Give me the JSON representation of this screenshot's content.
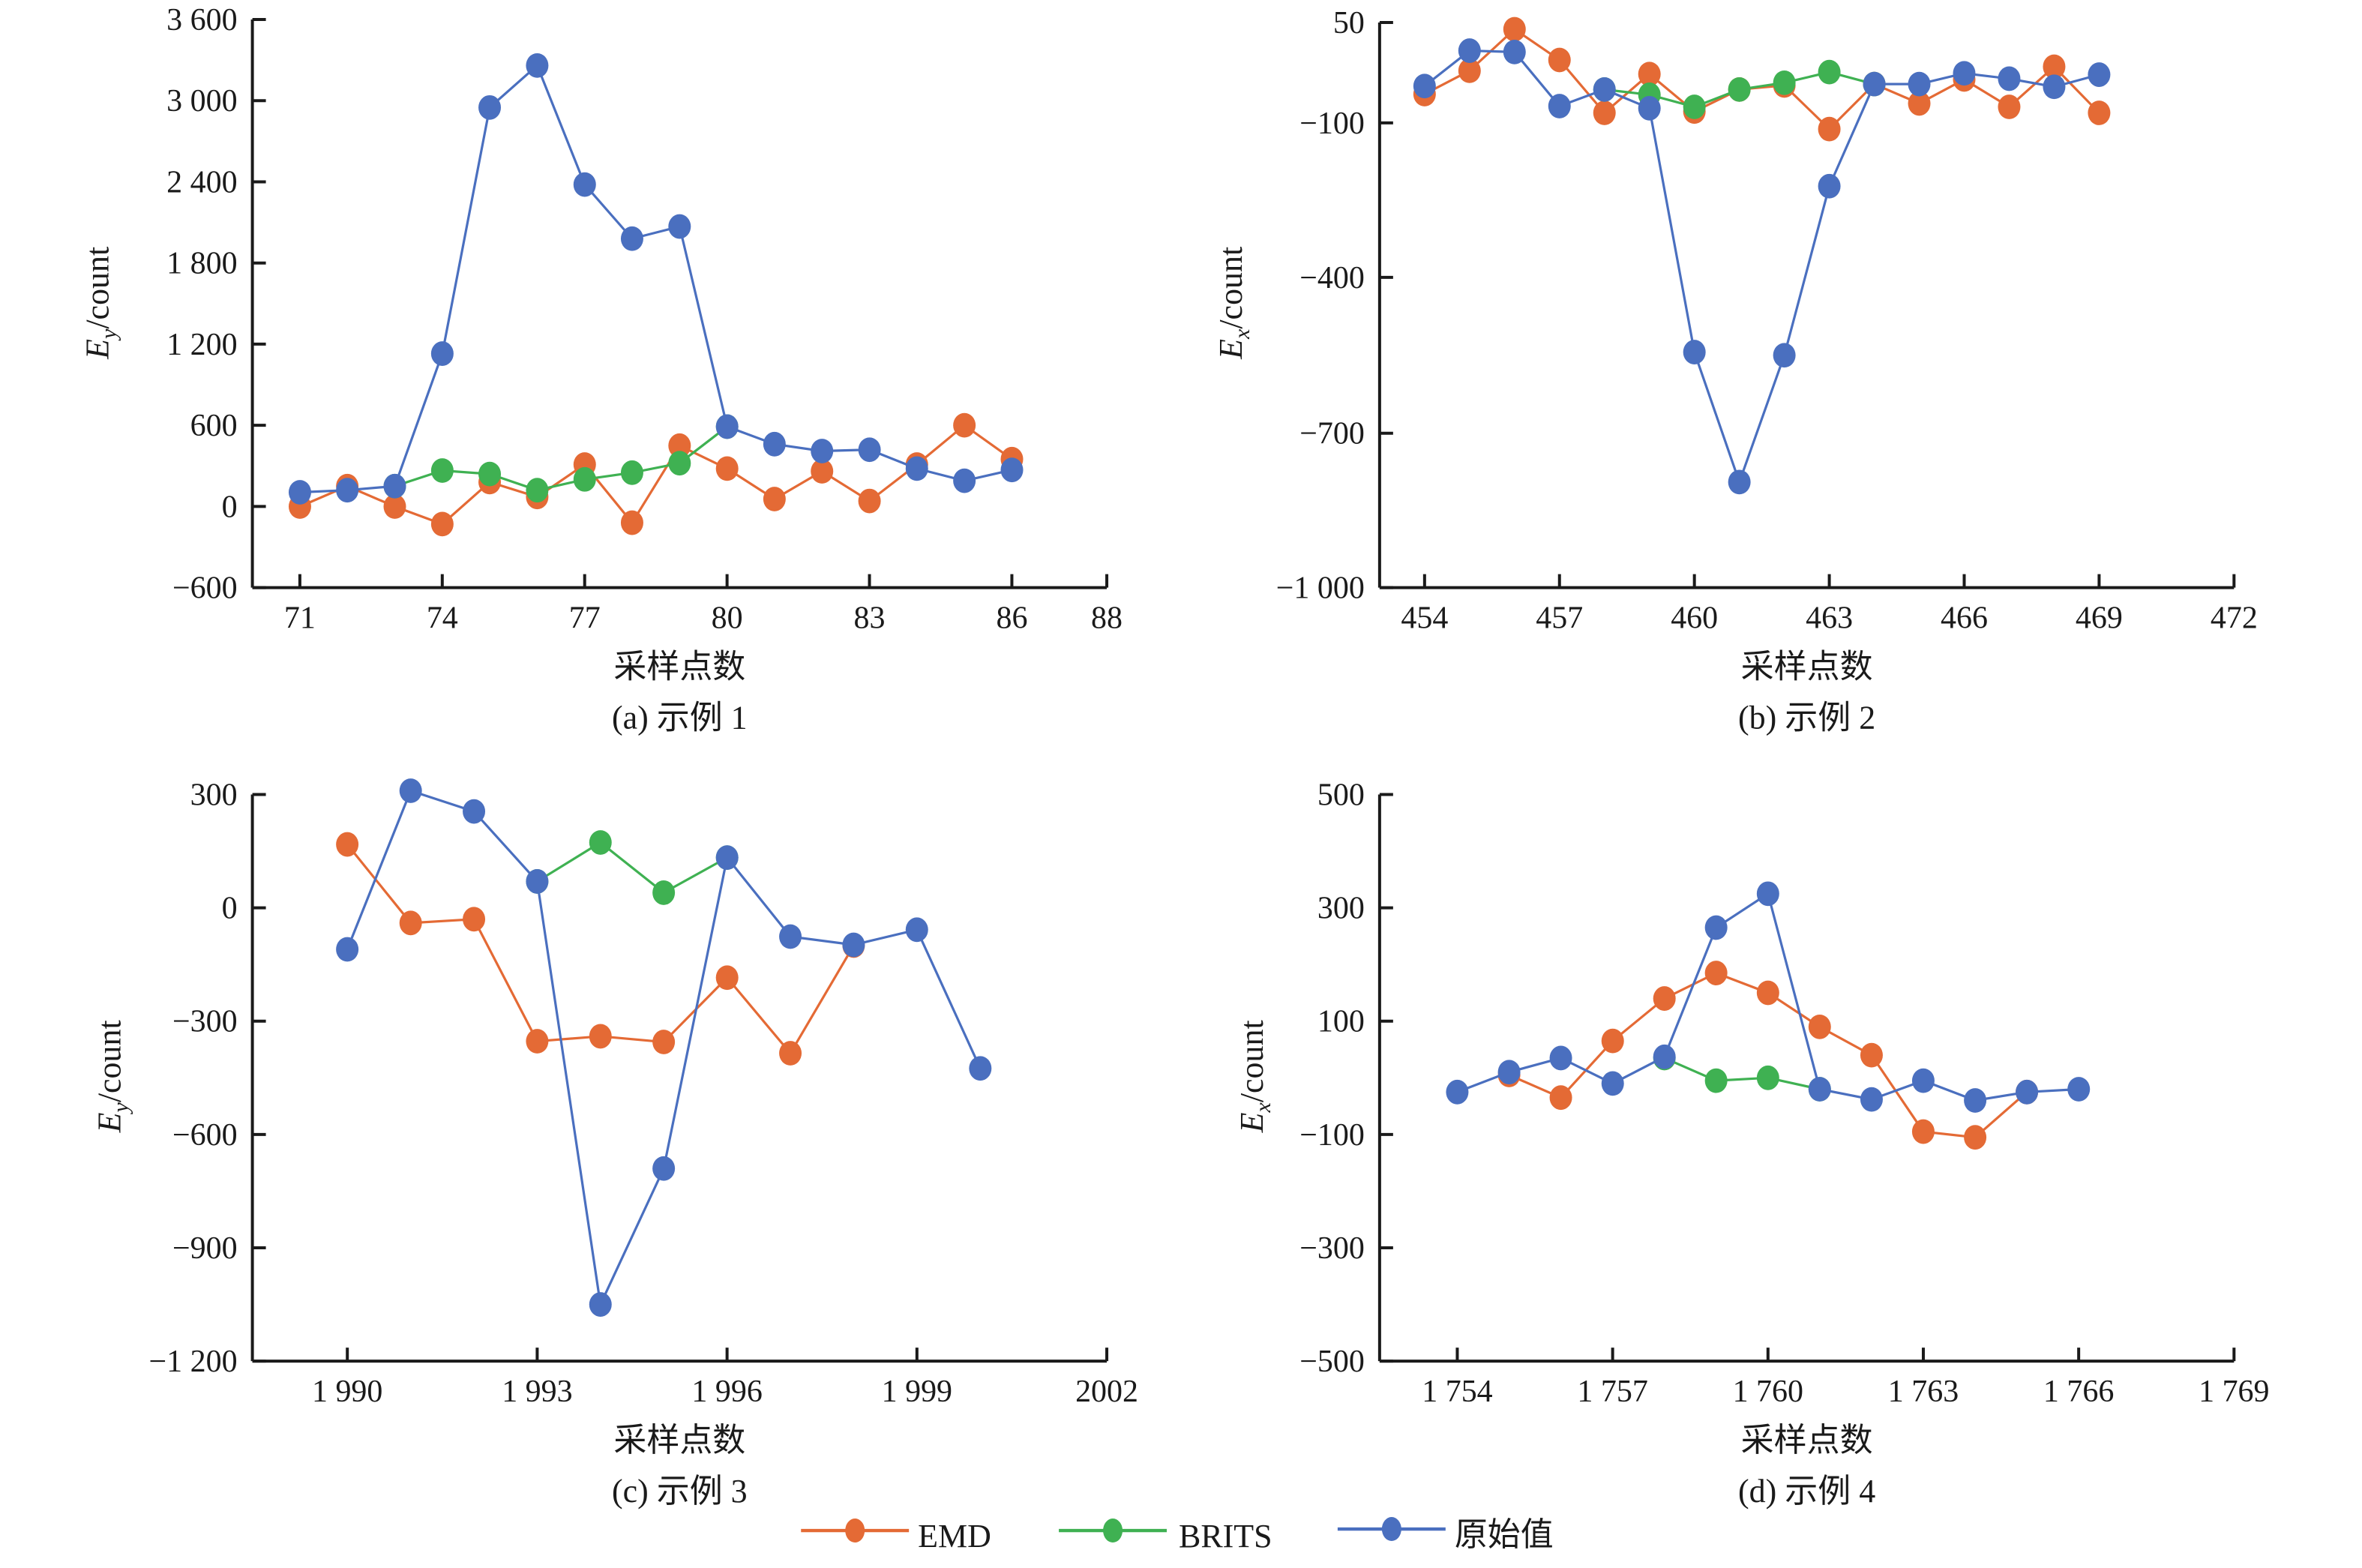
{
  "legend": {
    "items": [
      {
        "name": "EMD",
        "color": "#E46A35"
      },
      {
        "name": "BRITS",
        "color": "#3FB152"
      },
      {
        "name": "原始值",
        "color": "#4A6FBF"
      }
    ]
  },
  "chart_data": [
    {
      "id": "a",
      "type": "line",
      "caption": "(a) 示例 1",
      "xlabel": "采样点数",
      "ylabel_main": "E",
      "ylabel_sub": "y",
      "ylabel_rest": "/count",
      "xlim": [
        70,
        88
      ],
      "ylim": [
        -600,
        3600
      ],
      "xticks": [
        71,
        74,
        77,
        80,
        83,
        86,
        88
      ],
      "xtick_labels": [
        "71",
        "74",
        "77",
        "80",
        "83",
        "86",
        "88"
      ],
      "yticks": [
        3600,
        3000,
        2400,
        1800,
        1200,
        600,
        0,
        -600
      ],
      "ytick_labels": [
        "3 600",
        "3 000",
        "2 400",
        "1 800",
        "1 200",
        "600",
        "0",
        "−600"
      ],
      "grid": false,
      "series": [
        {
          "name": "EMD",
          "x": [
            71,
            72,
            73,
            74,
            75,
            76,
            77,
            78,
            79,
            80,
            81,
            82,
            83,
            84,
            85,
            86
          ],
          "y": [
            0,
            150,
            0,
            -130,
            180,
            70,
            310,
            -120,
            450,
            280,
            55,
            260,
            40,
            310,
            600,
            350
          ]
        },
        {
          "name": "BRITS",
          "x": [
            73,
            74,
            75,
            76,
            77,
            78,
            79,
            80
          ],
          "y": [
            150,
            265,
            240,
            120,
            200,
            250,
            320,
            590
          ]
        },
        {
          "name": "原始值",
          "x": [
            71,
            72,
            73,
            74,
            75,
            76,
            77,
            78,
            79,
            80,
            81,
            82,
            83,
            84,
            85,
            86
          ],
          "y": [
            105,
            120,
            150,
            1130,
            2950,
            3260,
            2380,
            1980,
            2070,
            590,
            460,
            410,
            420,
            280,
            190,
            270
          ]
        }
      ]
    },
    {
      "id": "b",
      "type": "line",
      "caption": "(b) 示例 2",
      "xlabel": "采样点数",
      "ylabel_main": "E",
      "ylabel_sub": "x",
      "ylabel_rest": "/count",
      "xlim": [
        453,
        472
      ],
      "ylim": [
        -1000,
        50
      ],
      "xticks": [
        454,
        457,
        460,
        463,
        466,
        469,
        472
      ],
      "xtick_labels": [
        "454",
        "457",
        "460",
        "463",
        "466",
        "469",
        "472"
      ],
      "yticks": [
        50,
        -100,
        -400,
        -700,
        -1000
      ],
      "ytick_labels": [
        "50",
        "−100",
        "−400",
        "−700",
        "−1 000"
      ],
      "grid": false,
      "series": [
        {
          "name": "EMD",
          "x": [
            454,
            455,
            456,
            457,
            458,
            459,
            460,
            461,
            462,
            463,
            464,
            465,
            466,
            467,
            468,
            469
          ],
          "y": [
            -57,
            -22,
            40,
            -6,
            -85,
            -27,
            -83,
            -50,
            -44,
            -112,
            -42,
            -71,
            -35,
            -76,
            -16,
            -85
          ]
        },
        {
          "name": "BRITS",
          "x": [
            458,
            459,
            460,
            461,
            462,
            463,
            464
          ],
          "y": [
            -50,
            -58,
            -76,
            -50,
            -40,
            -24,
            -42
          ]
        },
        {
          "name": "原始值",
          "x": [
            454,
            455,
            456,
            457,
            458,
            459,
            460,
            461,
            462,
            463,
            464,
            465,
            466,
            467,
            468,
            469
          ],
          "y": [
            -45,
            8,
            6,
            -75,
            -50,
            -78,
            -544,
            -795,
            -550,
            -223,
            -42,
            -42,
            -26,
            -34,
            -46,
            -28
          ]
        }
      ]
    },
    {
      "id": "c",
      "type": "line",
      "caption": "(c) 示例 3",
      "xlabel": "采样点数",
      "ylabel_main": "E",
      "ylabel_sub": "y",
      "ylabel_rest": "/count",
      "xlim": [
        1988.5,
        2002
      ],
      "ylim": [
        -1200,
        300
      ],
      "xticks": [
        1990,
        1993,
        1996,
        1999,
        2002
      ],
      "xtick_labels": [
        "1 990",
        "1 993",
        "1 996",
        "1 999",
        "2002"
      ],
      "yticks": [
        300,
        0,
        -300,
        -600,
        -900,
        -1200
      ],
      "ytick_labels": [
        "300",
        "0",
        "−300",
        "−600",
        "−900",
        "−1 200"
      ],
      "grid": false,
      "series": [
        {
          "name": "EMD",
          "x": [
            1990,
            1991,
            1992,
            1993,
            1994,
            1995,
            1996,
            1997,
            1998
          ],
          "y": [
            168,
            -40,
            -30,
            -353,
            -340,
            -355,
            -185,
            -385,
            -100
          ]
        },
        {
          "name": "BRITS",
          "x": [
            1993,
            1994,
            1995,
            1996
          ],
          "y": [
            70,
            173,
            40,
            133
          ]
        },
        {
          "name": "原始值",
          "x": [
            1990,
            1991,
            1992,
            1993,
            1994,
            1995,
            1996,
            1997,
            1998,
            1999,
            2000
          ],
          "y": [
            -110,
            310,
            255,
            70,
            -1050,
            -690,
            133,
            -76,
            -98,
            -58,
            -425
          ]
        }
      ]
    },
    {
      "id": "d",
      "type": "line",
      "caption": "(d) 示例 4",
      "xlabel": "采样点数",
      "ylabel_main": "E",
      "ylabel_sub": "x",
      "ylabel_rest": "/count",
      "xlim": [
        1752.5,
        1769
      ],
      "ylim": [
        -500,
        500
      ],
      "xticks": [
        1754,
        1757,
        1760,
        1763,
        1766,
        1769
      ],
      "xtick_labels": [
        "1 754",
        "1 757",
        "1 760",
        "1 763",
        "1 766",
        "1 769"
      ],
      "yticks": [
        500,
        300,
        100,
        -100,
        -300,
        -500
      ],
      "ytick_labels": [
        "500",
        "300",
        "100",
        "−100",
        "−300",
        "−500"
      ],
      "grid": false,
      "series": [
        {
          "name": "EMD",
          "x": [
            1755,
            1756,
            1757,
            1758,
            1759,
            1760,
            1761,
            1762,
            1763,
            1764,
            1765
          ],
          "y": [
            5,
            -35,
            65,
            140,
            185,
            150,
            90,
            40,
            -95,
            -105,
            -25
          ]
        },
        {
          "name": "BRITS",
          "x": [
            1758,
            1759,
            1760,
            1761
          ],
          "y": [
            35,
            -5,
            0,
            -20
          ]
        },
        {
          "name": "原始值",
          "x": [
            1754,
            1755,
            1756,
            1757,
            1758,
            1759,
            1760,
            1761,
            1762,
            1763,
            1764,
            1765,
            1766
          ],
          "y": [
            -25,
            10,
            35,
            -10,
            37,
            265,
            325,
            -20,
            -38,
            -5,
            -40,
            -25,
            -20
          ]
        }
      ]
    }
  ]
}
